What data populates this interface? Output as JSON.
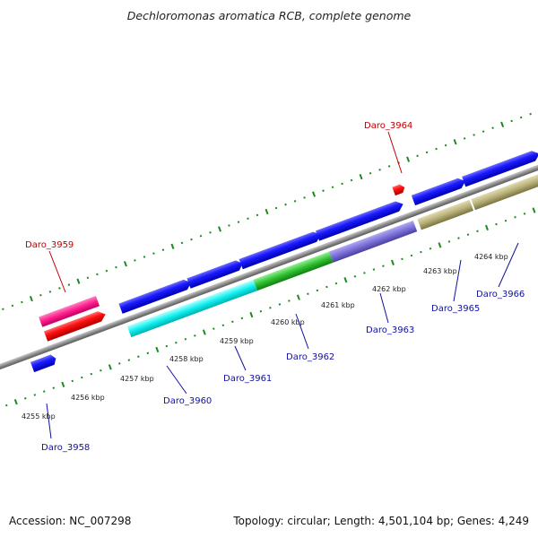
{
  "title": "Dechloromonas aromatica RCB, complete genome",
  "footer": {
    "accession": "Accession: NC_007298",
    "summary": "Topology: circular; Length: 4,501,104 bp; Genes: 4,249"
  },
  "colors": {
    "backbone": "#8a8a8a",
    "tick": "#1c8a1c",
    "label_red": "#c00000",
    "label_blue": "#1010a0"
  },
  "kbp_labels": [
    "4255 kbp",
    "4256 kbp",
    "4257 kbp",
    "4258 kbp",
    "4259 kbp",
    "4260 kbp",
    "4261 kbp",
    "4262 kbp",
    "4263 kbp",
    "4264 kbp"
  ],
  "genes": [
    {
      "name": "Daro_3958",
      "color": "blue"
    },
    {
      "name": "Daro_3959",
      "color": "red"
    },
    {
      "name": "Daro_3960",
      "color": "blue"
    },
    {
      "name": "Daro_3961",
      "color": "blue"
    },
    {
      "name": "Daro_3962",
      "color": "blue"
    },
    {
      "name": "Daro_3963",
      "color": "blue"
    },
    {
      "name": "Daro_3964",
      "color": "red"
    },
    {
      "name": "Daro_3965",
      "color": "blue"
    },
    {
      "name": "Daro_3966",
      "color": "blue"
    }
  ]
}
